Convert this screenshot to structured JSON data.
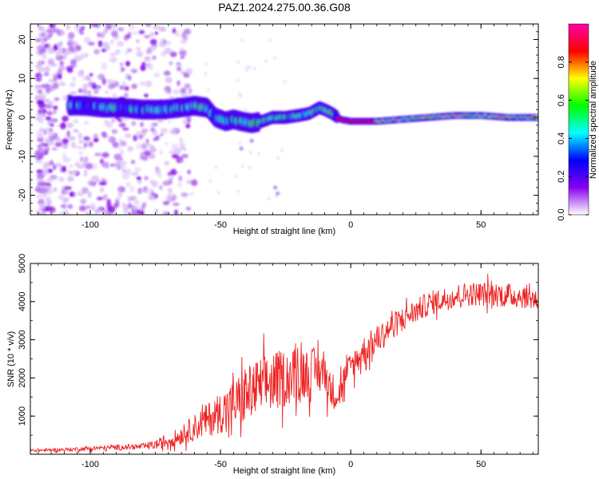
{
  "title": "PAZ1.2024.275.00.36.G08",
  "chart_data": [
    {
      "type": "heatmap",
      "xlabel": "Height of straight line (km)",
      "ylabel": "Frequency (Hz)",
      "xlim": [
        -123,
        72
      ],
      "ylim": [
        -25,
        24
      ],
      "xticks": [
        -100,
        -50,
        0,
        50
      ],
      "yticks": [
        -20,
        -10,
        0,
        10,
        20
      ],
      "colorbar": {
        "label": "Normalized spectral amplitude",
        "range": [
          0,
          1
        ],
        "ticks": [
          0.0,
          0.2,
          0.4,
          0.6,
          0.8
        ],
        "colors": [
          "#ffffff",
          "#8800ee",
          "#0000ff",
          "#00ffff",
          "#00ff00",
          "#ffff00",
          "#ff0000",
          "#ff00aa"
        ]
      },
      "ridge_frequency_hz": {
        "x": [
          -102,
          -95,
          -88,
          -80,
          -72,
          -66,
          -60,
          -55,
          -52,
          -48,
          -45,
          -42,
          -38,
          -34,
          -30,
          -25,
          -20,
          -16,
          -12,
          -10,
          -7,
          -4,
          0,
          10,
          20,
          30,
          40,
          50,
          60,
          70,
          72
        ],
        "y": [
          3,
          2.5,
          2.5,
          2,
          2,
          2.5,
          3,
          2.5,
          0,
          -1,
          -0.5,
          -1,
          -1.5,
          -1,
          0,
          0,
          0.5,
          1,
          2.5,
          2,
          1,
          -0.5,
          -1,
          -1,
          -0.5,
          0,
          0.5,
          0.5,
          0,
          0,
          0
        ]
      }
    },
    {
      "type": "line",
      "xlabel": "Height of straight line (km)",
      "ylabel": "SNR (10 * v/v)",
      "xlim": [
        -123,
        72
      ],
      "ylim": [
        0,
        5000
      ],
      "xticks": [
        -100,
        -50,
        0,
        50
      ],
      "yticks": [
        1000,
        2000,
        3000,
        4000,
        5000
      ],
      "series_color": "#ee2222",
      "series": [
        {
          "x": [
            -123,
            -110,
            -100,
            -90,
            -80,
            -75,
            -70,
            -65,
            -60,
            -55,
            -50,
            -45,
            -40,
            -35,
            -30,
            -25,
            -20,
            -15,
            -10,
            -8,
            -5,
            0,
            5,
            10,
            15,
            20,
            25,
            30,
            35,
            40,
            45,
            50,
            55,
            60,
            65,
            70,
            72
          ],
          "y": [
            100,
            120,
            150,
            180,
            200,
            250,
            350,
            500,
            700,
            900,
            1100,
            1300,
            1550,
            1750,
            1900,
            2000,
            2100,
            2150,
            2200,
            1700,
            1600,
            2300,
            2700,
            3000,
            3300,
            3550,
            3750,
            3950,
            4050,
            4150,
            4200,
            4200,
            4200,
            4150,
            4150,
            4100,
            4000
          ],
          "noise_amplitude": [
            40,
            50,
            60,
            70,
            80,
            120,
            180,
            250,
            350,
            450,
            550,
            650,
            750,
            800,
            800,
            750,
            700,
            650,
            600,
            500,
            450,
            400,
            400,
            380,
            360,
            340,
            320,
            320,
            320,
            320,
            320,
            320,
            320,
            320,
            320,
            320,
            320
          ]
        }
      ]
    }
  ]
}
